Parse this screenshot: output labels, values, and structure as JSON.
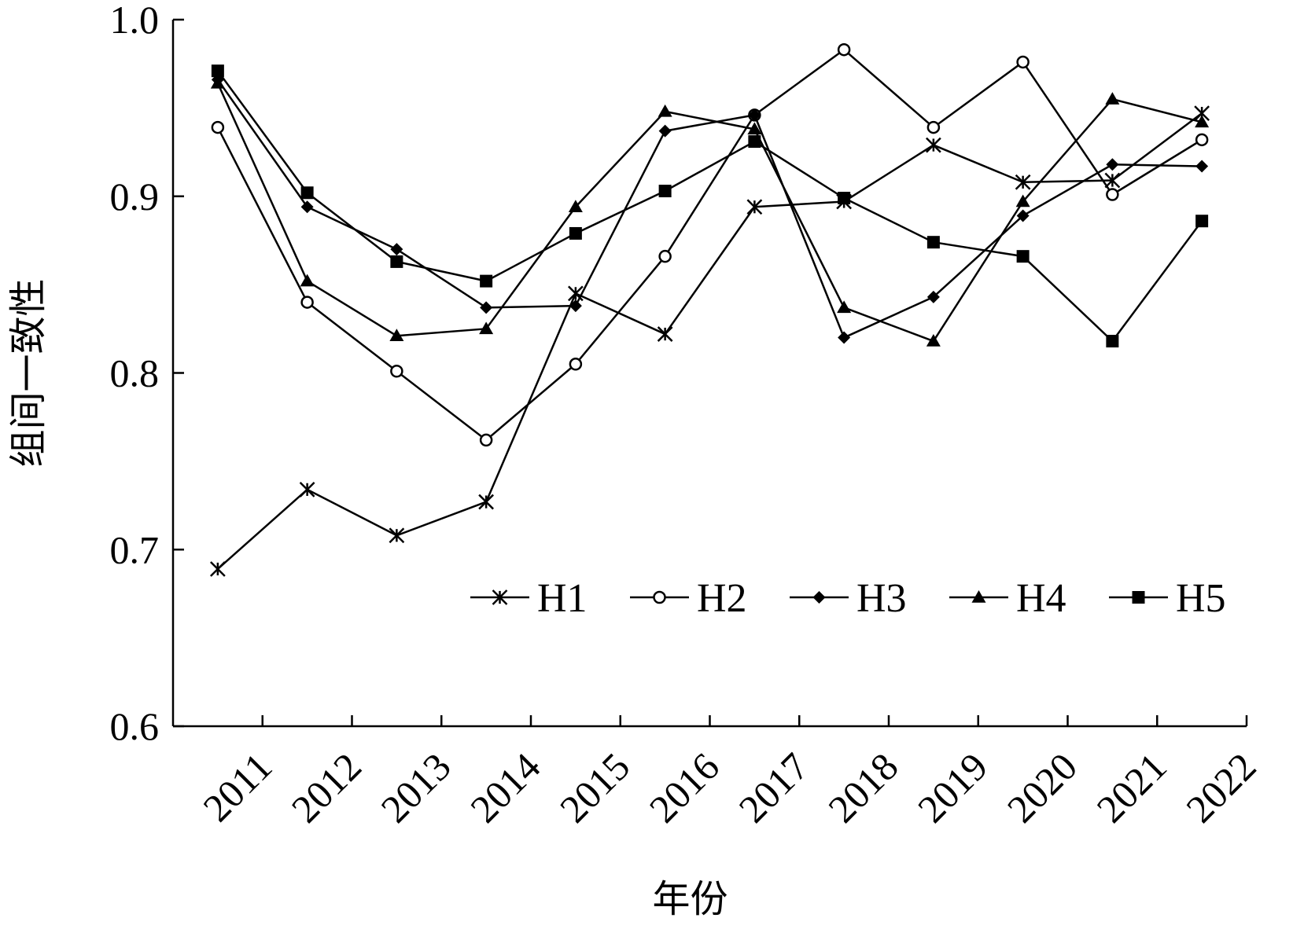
{
  "chart_data": {
    "type": "line",
    "xlabel": "年份",
    "ylabel": "组间一致性",
    "ylim": [
      0.6,
      1.0
    ],
    "yticks": [
      "0.6",
      "0.7",
      "0.8",
      "0.9",
      "1.0"
    ],
    "yticks_values": [
      0.6,
      0.7,
      0.8,
      0.9,
      1.0
    ],
    "x": [
      "2011",
      "2012",
      "2013",
      "2014",
      "2015",
      "2016",
      "2017",
      "2018",
      "2019",
      "2020",
      "2021",
      "2022"
    ],
    "legend_position": "right, lower-middle",
    "grid": false,
    "series": [
      {
        "name": "H1",
        "marker": "asterisk",
        "values": [
          0.689,
          0.734,
          0.708,
          0.727,
          0.845,
          0.822,
          0.894,
          0.897,
          0.929,
          0.908,
          0.909,
          0.947
        ]
      },
      {
        "name": "H2",
        "marker": "circle-open",
        "values": [
          0.939,
          0.84,
          0.801,
          0.762,
          0.805,
          0.866,
          0.946,
          0.983,
          0.939,
          0.976,
          0.901,
          0.932
        ]
      },
      {
        "name": "H3",
        "marker": "diamond-filled",
        "values": [
          0.966,
          0.894,
          0.87,
          0.837,
          0.838,
          0.937,
          0.946,
          0.82,
          0.843,
          0.889,
          0.918,
          0.917
        ]
      },
      {
        "name": "H4",
        "marker": "triangle-filled",
        "values": [
          0.964,
          0.852,
          0.821,
          0.825,
          0.894,
          0.948,
          0.938,
          0.837,
          0.818,
          0.897,
          0.955,
          0.942
        ]
      },
      {
        "name": "H5",
        "marker": "square-filled",
        "values": [
          0.971,
          0.902,
          0.863,
          0.852,
          0.879,
          0.903,
          0.931,
          0.899,
          0.874,
          0.866,
          0.818,
          0.886
        ]
      }
    ]
  }
}
